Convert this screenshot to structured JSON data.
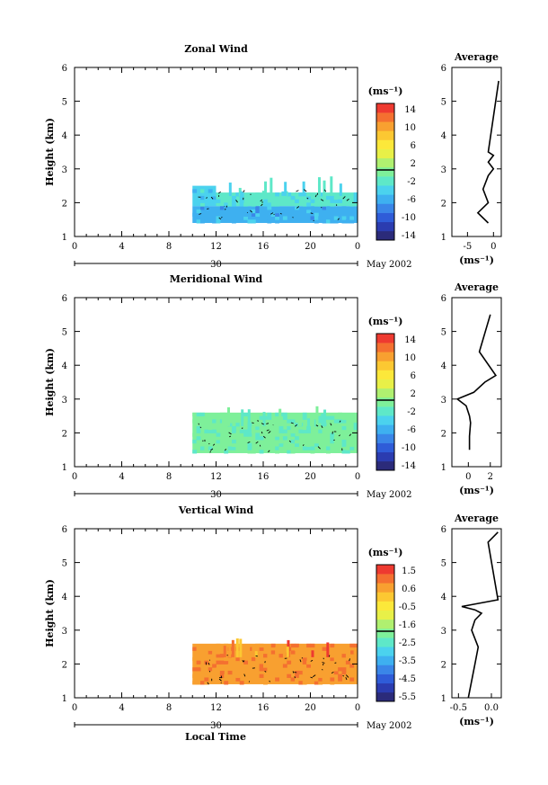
{
  "xlabel": "Local Time",
  "date_label": "May 2002",
  "day_label": "30",
  "colors": {
    "scale": [
      "#2b2b7a",
      "#2b3cb0",
      "#2f5cd8",
      "#3a86e8",
      "#3eb0f0",
      "#4bd2ee",
      "#5ee8c8",
      "#7ef09a",
      "#b0f070",
      "#e8f048",
      "#fce83a",
      "#fcc832",
      "#f8a030",
      "#f47030",
      "#ee3a30"
    ]
  },
  "panels": [
    {
      "title": "Zonal Wind",
      "ylabel": "Height (km)",
      "unit": "(ms⁻¹)",
      "colorbar_ticks": [
        "14",
        "10",
        "6",
        "2",
        "-2",
        "-6",
        "-10",
        "-14"
      ],
      "avg_title": "Average",
      "avg_xlabel": "(ms⁻¹)",
      "avg_xticks": [
        "-5",
        "0"
      ]
    },
    {
      "title": "Meridional Wind",
      "ylabel": "Height (km)",
      "unit": "(ms⁻¹)",
      "colorbar_ticks": [
        "14",
        "10",
        "6",
        "2",
        "-2",
        "-6",
        "-10",
        "-14"
      ],
      "avg_title": "Average",
      "avg_xlabel": "(ms⁻¹)",
      "avg_xticks": [
        "0",
        "2"
      ]
    },
    {
      "title": "Vertical Wind",
      "ylabel": "Height (km)",
      "unit": "(ms⁻¹)",
      "colorbar_ticks": [
        "1.5",
        "0.6",
        "-0.5",
        "-1.6",
        "-2.5",
        "-3.5",
        "-4.5",
        "-5.5"
      ],
      "avg_title": "Average",
      "avg_xlabel": "(ms⁻¹)",
      "avg_xticks": [
        "-0.5",
        "0.0"
      ]
    }
  ],
  "chart_data": [
    {
      "type": "heatmap",
      "title": "Zonal Wind",
      "xlabel": "",
      "ylabel": "Height (km)",
      "xticks": [
        "0",
        "4",
        "8",
        "12",
        "16",
        "20",
        "0"
      ],
      "yticks": [
        "1",
        "2",
        "3",
        "4",
        "5",
        "6"
      ],
      "xlim": [
        0,
        24
      ],
      "ylim": [
        1,
        6
      ],
      "colorbar": {
        "unit": "(ms⁻¹)",
        "range": [
          -16,
          16
        ]
      },
      "blocks": [
        {
          "x0": 10,
          "x1": 24,
          "y0": 1.4,
          "y1": 1.9,
          "value": -6
        },
        {
          "x0": 10,
          "x1": 12,
          "y0": 1.9,
          "y1": 2.5,
          "value": -4
        },
        {
          "x0": 12,
          "x1": 24,
          "y0": 1.9,
          "y1": 2.3,
          "value": -3
        }
      ],
      "average_profile": {
        "title": "Average",
        "xlabel": "(ms⁻¹)",
        "xlim": [
          -8,
          1.5
        ],
        "xticks": [
          -5,
          0
        ],
        "x": [
          -1,
          -3,
          -1,
          -2,
          -1,
          0,
          -1,
          0,
          -1,
          1
        ],
        "y": [
          1.4,
          1.7,
          2.0,
          2.4,
          2.8,
          3.0,
          3.2,
          3.4,
          3.5,
          5.6
        ]
      }
    },
    {
      "type": "heatmap",
      "title": "Meridional Wind",
      "xlabel": "",
      "ylabel": "Height (km)",
      "xticks": [
        "0",
        "4",
        "8",
        "12",
        "16",
        "20",
        "0"
      ],
      "yticks": [
        "1",
        "2",
        "3",
        "4",
        "5",
        "6"
      ],
      "xlim": [
        0,
        24
      ],
      "ylim": [
        1,
        6
      ],
      "colorbar": {
        "unit": "(ms⁻¹)",
        "range": [
          -16,
          16
        ]
      },
      "blocks": [
        {
          "x0": 10,
          "x1": 24,
          "y0": 1.4,
          "y1": 2.6,
          "value": -1
        }
      ],
      "average_profile": {
        "title": "Average",
        "xlabel": "(ms⁻¹)",
        "xlim": [
          -1.5,
          3
        ],
        "xticks": [
          0,
          2
        ],
        "x": [
          0.1,
          0.1,
          0.2,
          0.1,
          -0.2,
          -1,
          0.5,
          1.5,
          2.5,
          1,
          2
        ],
        "y": [
          1.5,
          1.9,
          2.3,
          2.5,
          2.8,
          3.0,
          3.2,
          3.5,
          3.7,
          4.4,
          5.5
        ]
      }
    },
    {
      "type": "heatmap",
      "title": "Vertical Wind",
      "xlabel": "Local Time",
      "ylabel": "Height (km)",
      "xticks": [
        "0",
        "4",
        "8",
        "12",
        "16",
        "20",
        "0"
      ],
      "yticks": [
        "1",
        "2",
        "3",
        "4",
        "5",
        "6"
      ],
      "xlim": [
        0,
        24
      ],
      "ylim": [
        1,
        6
      ],
      "colorbar": {
        "unit": "(ms⁻¹)",
        "range": [
          -6,
          2
        ]
      },
      "blocks": [
        {
          "x0": 10,
          "x1": 24,
          "y0": 1.4,
          "y1": 2.6,
          "value": 0.9
        }
      ],
      "average_profile": {
        "title": "Average",
        "xlabel": "(ms⁻¹)",
        "xlim": [
          -0.6,
          0.15
        ],
        "xticks": [
          -0.5,
          0.0
        ],
        "x": [
          -0.35,
          -0.3,
          -0.25,
          -0.2,
          -0.3,
          -0.25,
          -0.15,
          -0.25,
          -0.45,
          0.1,
          -0.05,
          0.1
        ],
        "y": [
          1.0,
          1.5,
          2.0,
          2.5,
          3.0,
          3.3,
          3.5,
          3.6,
          3.7,
          3.9,
          5.6,
          5.9
        ]
      }
    }
  ]
}
